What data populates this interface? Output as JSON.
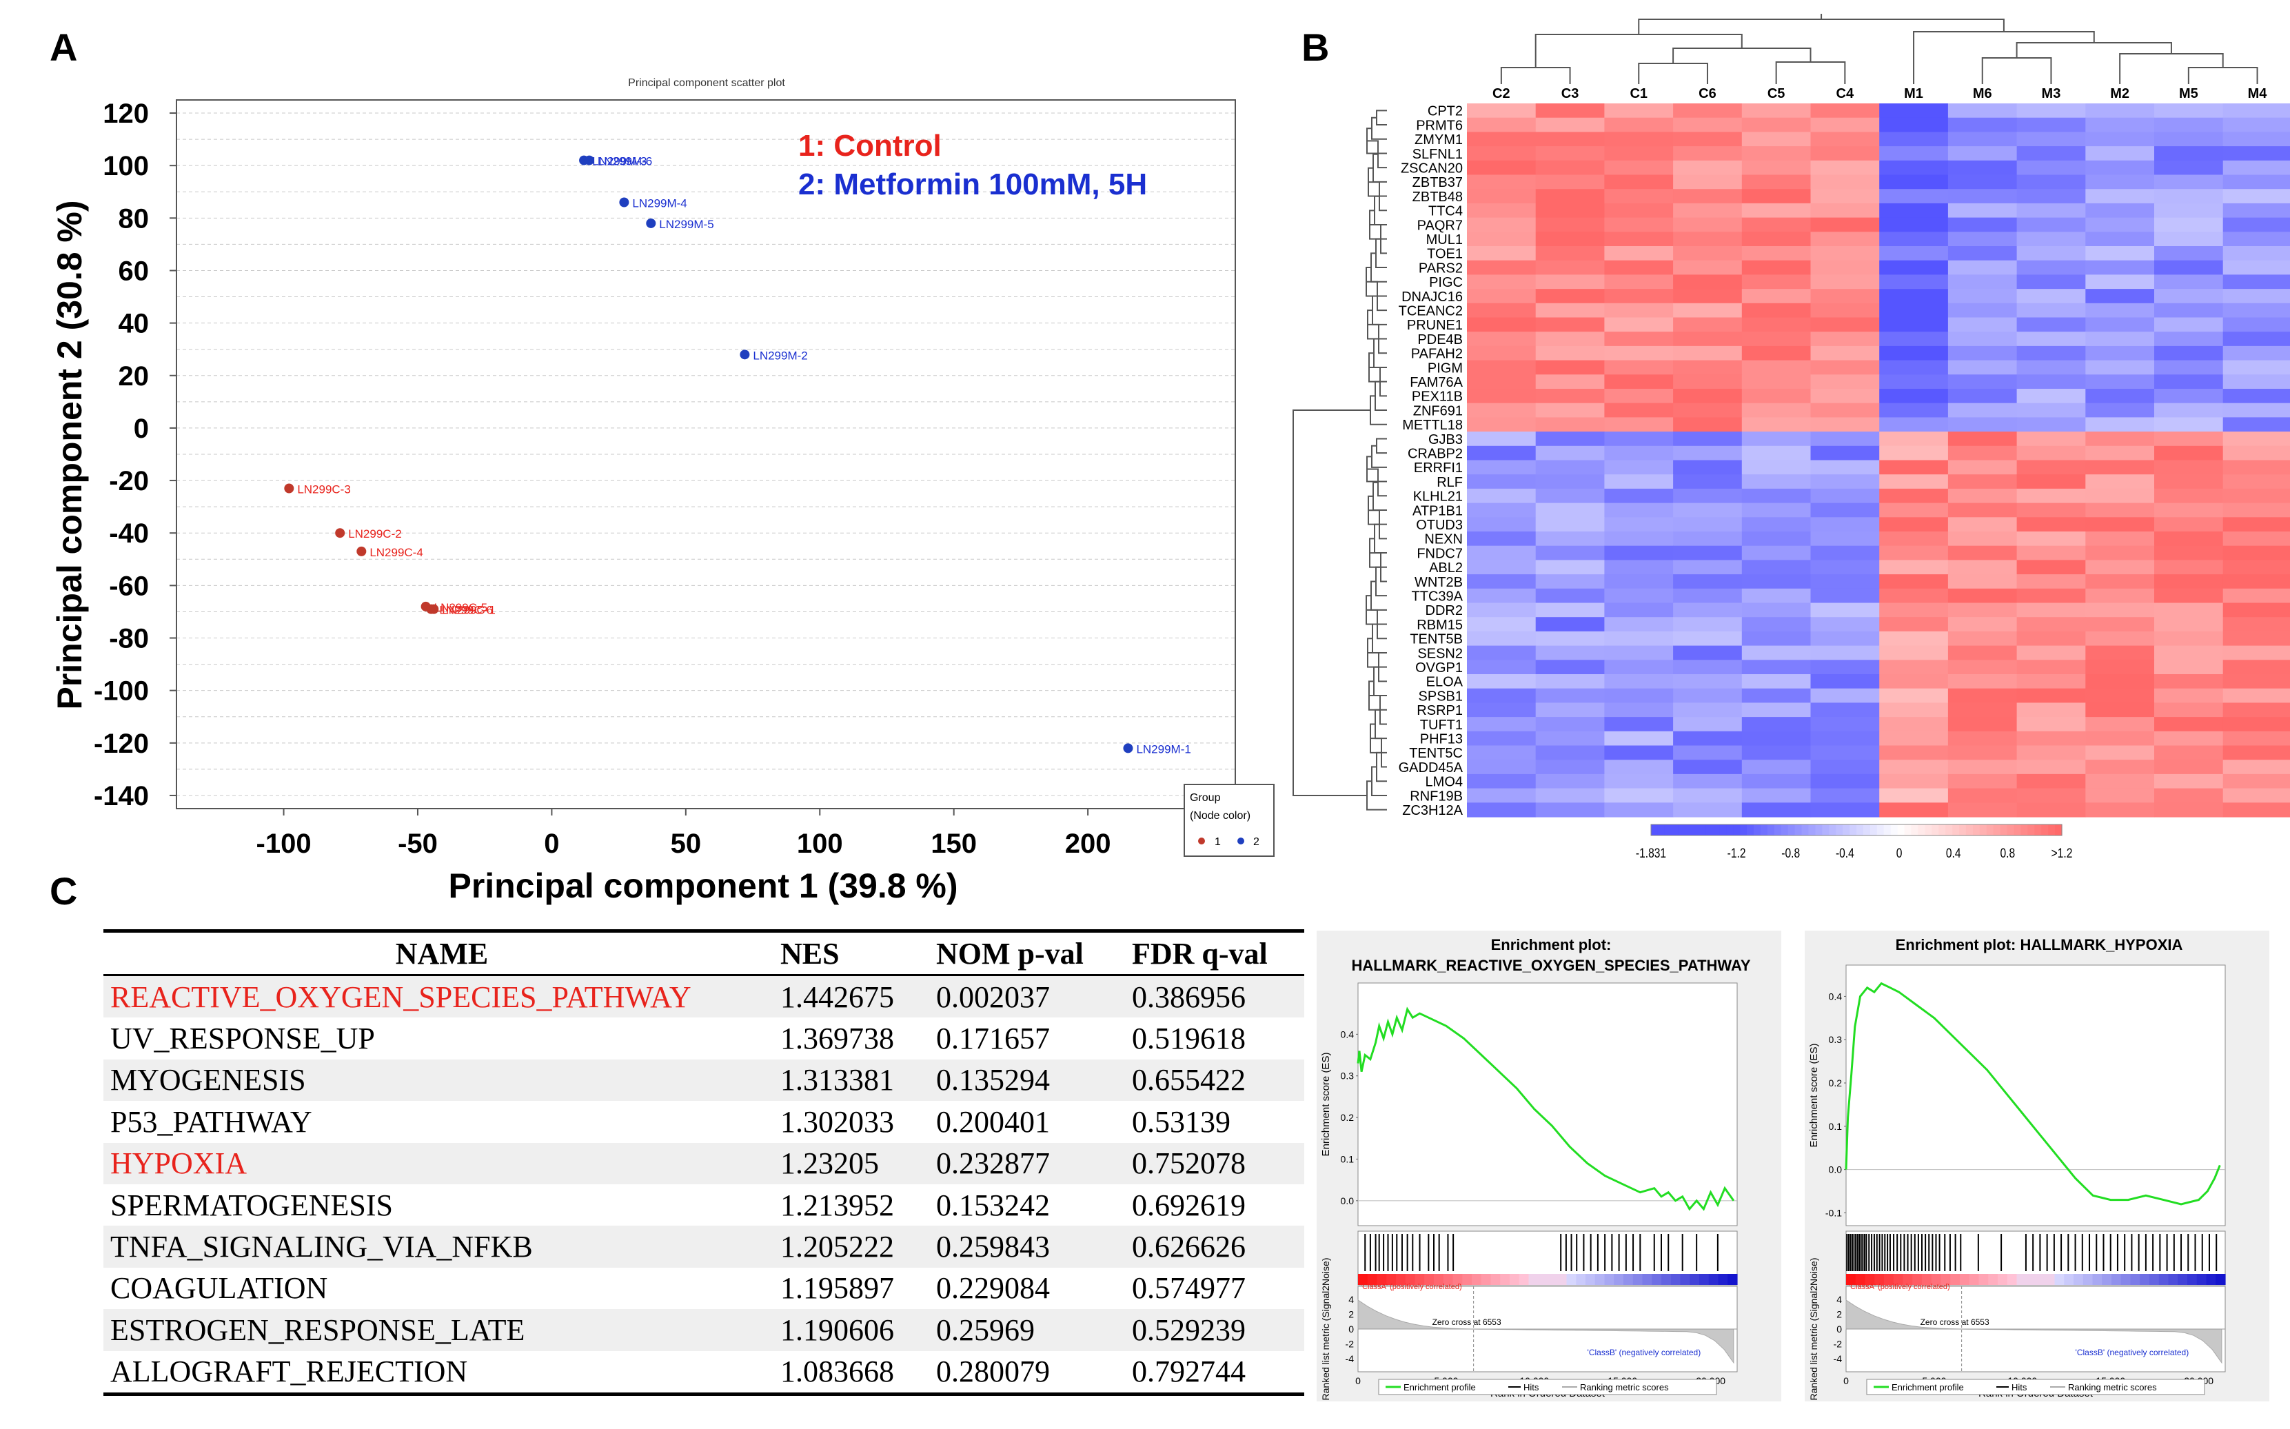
{
  "panel_labels": {
    "a": "A",
    "b": "B",
    "c": "C"
  },
  "colors": {
    "control": "#e8231c",
    "metformin": "#1a2fd0",
    "control_dot": "#c0392b",
    "metformin_dot": "#1f3fbf",
    "es_line": "#22dd22"
  },
  "chart_data": [
    {
      "type": "scatter",
      "title": "Principal component scatter plot",
      "xlabel": "Principal component 1 (39.8 %)",
      "ylabel": "Principal component 2 (30.8 %)",
      "xlim": [
        -140,
        255
      ],
      "ylim": [
        -145,
        125
      ],
      "xticks": [
        "-100",
        "-50",
        "0",
        "50",
        "100",
        "150",
        "200"
      ],
      "yticks": [
        "120",
        "100",
        "80",
        "60",
        "40",
        "20",
        "0",
        "-20",
        "-40",
        "-60",
        "-80",
        "-100",
        "-120",
        "-140"
      ],
      "legend_text": {
        "control": "1: Control",
        "metformin": "2: Metformin 100mM, 5H"
      },
      "group_legend": {
        "title": "Group",
        "subtitle": "(Node color)",
        "items": [
          "1",
          "2"
        ]
      },
      "series": [
        {
          "name": "1",
          "points": [
            {
              "label": "LN299C-3",
              "x": -98,
              "y": -23
            },
            {
              "label": "LN299C-2",
              "x": -79,
              "y": -40
            },
            {
              "label": "LN299C-4",
              "x": -71,
              "y": -47
            },
            {
              "label": "LN299C-5",
              "x": -47,
              "y": -68
            },
            {
              "label": "LN299C-6",
              "x": -45,
              "y": -69
            },
            {
              "label": "LN299C-1",
              "x": -44,
              "y": -69
            }
          ]
        },
        {
          "name": "2",
          "points": [
            {
              "label": "LN299M-3",
              "x": 12,
              "y": 102
            },
            {
              "label": "LN299M-6",
              "x": 14,
              "y": 102
            },
            {
              "label": "LN299M-4",
              "x": 27,
              "y": 86
            },
            {
              "label": "LN299M-5",
              "x": 37,
              "y": 78
            },
            {
              "label": "LN299M-2",
              "x": 72,
              "y": 28
            },
            {
              "label": "LN299M-1",
              "x": 215,
              "y": -122
            }
          ]
        }
      ]
    },
    {
      "type": "heatmap",
      "columns": [
        "C2",
        "C3",
        "C1",
        "C6",
        "C5",
        "C4",
        "M1",
        "M6",
        "M3",
        "M2",
        "M5",
        "M4"
      ],
      "rows": [
        "CPT2",
        "PRMT6",
        "ZMYM1",
        "SLFNL1",
        "ZSCAN20",
        "ZBTB37",
        "ZBTB48",
        "TTC4",
        "PAQR7",
        "MUL1",
        "TOE1",
        "PARS2",
        "PIGC",
        "DNAJC16",
        "TCEANC2",
        "PRUNE1",
        "PDE4B",
        "PAFAH2",
        "PIGM",
        "FAM76A",
        "PEX11B",
        "ZNF691",
        "METTL18",
        "GJB3",
        "CRABP2",
        "ERRFI1",
        "RLF",
        "KLHL21",
        "ATP1B1",
        "OTUD3",
        "NEXN",
        "FNDC7",
        "ABL2",
        "WNT2B",
        "TTC39A",
        "DDR2",
        "RBM15",
        "TENT5B",
        "SESN2",
        "OVGP1",
        "ELOA",
        "SPSB1",
        "RSRP1",
        "TUFT1",
        "PHF13",
        "TENT5C",
        "GADD45A",
        "LMO4",
        "RNF19B",
        "ZC3H12A"
      ],
      "color_scale": {
        "min": -1.831,
        "max": 1.2,
        "tick_labels": [
          "-1.831",
          "-1.2",
          "-0.8",
          "-0.4",
          "0",
          "0.4",
          "0.8",
          ">1.2"
        ]
      }
    },
    {
      "type": "table",
      "headers": [
        "NAME",
        "NES",
        "NOM p-val",
        "FDR q-val"
      ],
      "rows": [
        {
          "name": "REACTIVE_OXYGEN_SPECIES_PATHWAY",
          "nes": "1.442675",
          "nom": "0.002037",
          "fdr": "0.386956",
          "highlight": true
        },
        {
          "name": "UV_RESPONSE_UP",
          "nes": "1.369738",
          "nom": "0.171657",
          "fdr": "0.519618",
          "highlight": false
        },
        {
          "name": "MYOGENESIS",
          "nes": "1.313381",
          "nom": "0.135294",
          "fdr": "0.655422",
          "highlight": false
        },
        {
          "name": "P53_PATHWAY",
          "nes": "1.302033",
          "nom": "0.200401",
          "fdr": "0.53139",
          "highlight": false
        },
        {
          "name": "HYPOXIA",
          "nes": "1.23205",
          "nom": "0.232877",
          "fdr": "0.752078",
          "highlight": true
        },
        {
          "name": "SPERMATOGENESIS",
          "nes": "1.213952",
          "nom": "0.153242",
          "fdr": "0.692619",
          "highlight": false
        },
        {
          "name": "TNFA_SIGNALING_VIA_NFKB",
          "nes": "1.205222",
          "nom": "0.259843",
          "fdr": "0.626626",
          "highlight": false
        },
        {
          "name": "COAGULATION",
          "nes": "1.195897",
          "nom": "0.229084",
          "fdr": "0.574977",
          "highlight": false
        },
        {
          "name": "ESTROGEN_RESPONSE_LATE",
          "nes": "1.190606",
          "nom": "0.25969",
          "fdr": "0.529239",
          "highlight": false
        },
        {
          "name": "ALLOGRAFT_REJECTION",
          "nes": "1.083668",
          "nom": "0.280079",
          "fdr": "0.792744",
          "highlight": false
        }
      ]
    },
    {
      "type": "line",
      "title": "Enrichment plot:",
      "title2": "HALLMARK_REACTIVE_OXYGEN_SPECIES_PATHWAY",
      "ylabel": "Enrichment score (ES)",
      "ylabel2": "Ranked list metric (Signal2Noise)",
      "xlabel": "Rank in Ordered Dataset",
      "xticks": [
        "0",
        "5,000",
        "10,000",
        "15,000",
        "20,000"
      ],
      "yticks": [
        "0.4",
        "0.3",
        "0.2",
        "0.1",
        "0.0"
      ],
      "yticks2": [
        "4",
        "2",
        "0",
        "-2",
        "-4"
      ],
      "xlim": [
        0,
        21500
      ],
      "ylim": [
        -0.05,
        0.5
      ],
      "x": [
        0,
        80,
        200,
        400,
        700,
        1000,
        1200,
        1450,
        1700,
        1950,
        2200,
        2500,
        2800,
        3100,
        3500,
        4000,
        5000,
        6000,
        7000,
        8000,
        9000,
        10000,
        11000,
        12000,
        13000,
        14000,
        15000,
        16000,
        16800,
        17200,
        17600,
        18000,
        18400,
        18800,
        19200,
        19600,
        20000,
        20400,
        20800,
        21300
      ],
      "values": [
        0.33,
        0.36,
        0.31,
        0.35,
        0.34,
        0.38,
        0.42,
        0.39,
        0.43,
        0.4,
        0.44,
        0.41,
        0.46,
        0.44,
        0.45,
        0.44,
        0.42,
        0.39,
        0.35,
        0.31,
        0.27,
        0.22,
        0.18,
        0.13,
        0.09,
        0.06,
        0.04,
        0.02,
        0.03,
        0.01,
        0.02,
        0.0,
        0.01,
        -0.02,
        0.0,
        -0.02,
        0.02,
        -0.01,
        0.03,
        0.0
      ],
      "hits": [
        400,
        700,
        1000,
        1200,
        1450,
        1700,
        1950,
        2200,
        2500,
        2800,
        3100,
        3500,
        4000,
        4300,
        4600,
        5100,
        5400,
        11500,
        11800,
        12100,
        12400,
        12800,
        13200,
        13600,
        14000,
        14400,
        14800,
        15200,
        15600,
        16000,
        16800,
        17200,
        17600,
        18400,
        19200,
        20400
      ],
      "annotations": {
        "pos": "'ClassA' (positively correlated)",
        "neg": "'ClassB' (negatively correlated)",
        "zero": "Zero cross at 6553"
      },
      "legend": [
        "Enrichment profile",
        "Hits",
        "Ranking metric scores"
      ]
    },
    {
      "type": "line",
      "title": "Enrichment plot: HALLMARK_HYPOXIA",
      "ylabel": "Enrichment score (ES)",
      "ylabel2": "Ranked list metric (Signal2Noise)",
      "xlabel": "Rank in Ordered Dataset",
      "xticks": [
        "0",
        "5,000",
        "10,000",
        "15,000",
        "20,000"
      ],
      "yticks": [
        "0.4",
        "0.3",
        "0.2",
        "0.1",
        "0.0",
        "-0.1"
      ],
      "yticks2": [
        "4",
        "2",
        "0",
        "-2",
        "-4"
      ],
      "xlim": [
        0,
        21500
      ],
      "ylim": [
        -0.12,
        0.45
      ],
      "x": [
        0,
        100,
        300,
        500,
        800,
        1200,
        1600,
        2000,
        2500,
        3000,
        4000,
        5000,
        6000,
        7000,
        8000,
        9000,
        10000,
        11000,
        12000,
        13000,
        14000,
        15000,
        16000,
        17000,
        18000,
        19000,
        20000,
        20500,
        20900,
        21200
      ],
      "values": [
        0.0,
        0.12,
        0.22,
        0.33,
        0.4,
        0.42,
        0.41,
        0.43,
        0.42,
        0.41,
        0.38,
        0.35,
        0.31,
        0.27,
        0.23,
        0.18,
        0.13,
        0.08,
        0.03,
        -0.02,
        -0.06,
        -0.07,
        -0.07,
        -0.06,
        -0.07,
        -0.08,
        -0.07,
        -0.05,
        -0.02,
        0.01
      ],
      "hits": [
        50,
        150,
        250,
        350,
        450,
        550,
        650,
        750,
        850,
        950,
        1050,
        1150,
        1300,
        1450,
        1600,
        1750,
        1900,
        2050,
        2200,
        2350,
        2500,
        2700,
        2900,
        3100,
        3300,
        3500,
        3700,
        3900,
        4100,
        4300,
        4500,
        4700,
        4900,
        5100,
        5300,
        5600,
        5900,
        6200,
        6500,
        7500,
        8800,
        10200,
        10600,
        11000,
        11400,
        11800,
        12200,
        12600,
        13000,
        13400,
        13800,
        14200,
        14600,
        15000,
        15400,
        15800,
        16200,
        16600,
        17000,
        17400,
        17800,
        18200,
        18600,
        19000,
        19400,
        19800,
        20200,
        20600,
        21000
      ],
      "annotations": {
        "pos": "'ClassA' (positively correlated)",
        "neg": "'ClassB' (negatively correlated)",
        "zero": "Zero cross at 6553"
      },
      "legend": [
        "Enrichment profile",
        "Hits",
        "Ranking metric scores"
      ]
    }
  ]
}
